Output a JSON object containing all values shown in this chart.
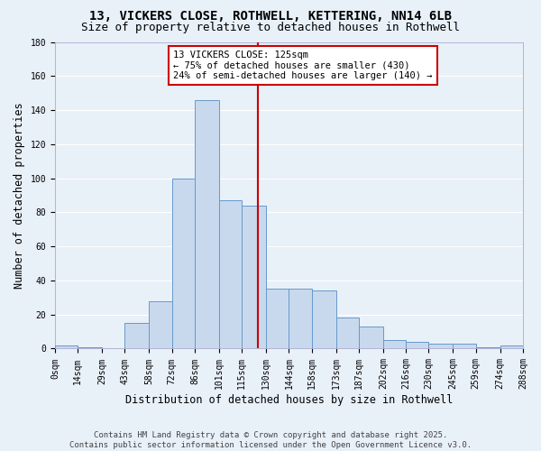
{
  "title": "13, VICKERS CLOSE, ROTHWELL, KETTERING, NN14 6LB",
  "subtitle": "Size of property relative to detached houses in Rothwell",
  "xlabel": "Distribution of detached houses by size in Rothwell",
  "ylabel": "Number of detached properties",
  "footer": "Contains HM Land Registry data © Crown copyright and database right 2025.\nContains public sector information licensed under the Open Government Licence v3.0.",
  "bin_edges": [
    0,
    14,
    29,
    43,
    58,
    72,
    86,
    101,
    115,
    130,
    144,
    158,
    173,
    187,
    202,
    216,
    230,
    245,
    259,
    274,
    288
  ],
  "bar_heights": [
    2,
    1,
    0,
    15,
    28,
    100,
    146,
    87,
    84,
    35,
    35,
    34,
    18,
    13,
    5,
    4,
    3,
    3,
    1,
    2
  ],
  "bar_color": "#c8d9ee",
  "bar_edgecolor": "#6699cc",
  "property_value": 125,
  "vline_color": "#cc0000",
  "annotation_text": "13 VICKERS CLOSE: 125sqm\n← 75% of detached houses are smaller (430)\n24% of semi-detached houses are larger (140) →",
  "annotation_box_facecolor": "#ffffff",
  "annotation_box_edgecolor": "#cc0000",
  "tick_labels": [
    "0sqm",
    "14sqm",
    "29sqm",
    "43sqm",
    "58sqm",
    "72sqm",
    "86sqm",
    "101sqm",
    "115sqm",
    "130sqm",
    "144sqm",
    "158sqm",
    "173sqm",
    "187sqm",
    "202sqm",
    "216sqm",
    "230sqm",
    "245sqm",
    "259sqm",
    "274sqm",
    "288sqm"
  ],
  "ylim": [
    0,
    180
  ],
  "yticks": [
    0,
    20,
    40,
    60,
    80,
    100,
    120,
    140,
    160,
    180
  ],
  "fig_facecolor": "#e8f0f8",
  "plot_facecolor": "#e8f0f8",
  "grid_color": "#ffffff",
  "title_fontsize": 10,
  "subtitle_fontsize": 9,
  "axis_label_fontsize": 8.5,
  "tick_fontsize": 7,
  "footer_fontsize": 6.5,
  "annotation_fontsize": 7.5
}
